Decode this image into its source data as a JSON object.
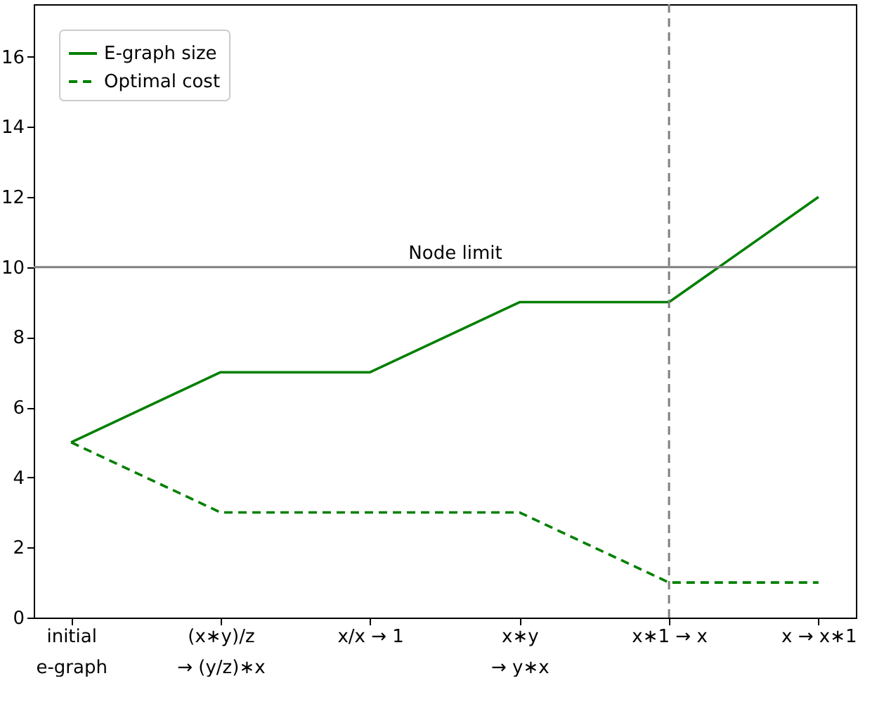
{
  "chart_data": {
    "type": "line",
    "categories": [
      "initial\ne-graph",
      "(x∗y)/z\n→ (y/z)∗x",
      "x/x → 1",
      "x∗y\n→ y∗x",
      "x∗1 → x",
      "x → x∗1"
    ],
    "series": [
      {
        "name": "E-graph size",
        "color": "#008000",
        "line_style": "solid",
        "values": [
          5,
          7,
          7,
          9,
          9,
          12
        ]
      },
      {
        "name": "Optimal cost",
        "color": "#008000",
        "line_style": "dashed",
        "values": [
          5,
          3,
          3,
          3,
          1,
          1
        ]
      }
    ],
    "ylim": [
      0,
      17.5
    ],
    "yticks": [
      0,
      2,
      4,
      6,
      8,
      10,
      12,
      14,
      16
    ],
    "ref_lines": [
      {
        "axis": "y",
        "value": 10,
        "label": "Node limit",
        "color": "#808080",
        "line_style": "solid"
      },
      {
        "axis": "x",
        "value": "x∗1 → x",
        "color": "#808080",
        "line_style": "dashed"
      }
    ],
    "legend": "top left",
    "marker": "none"
  }
}
